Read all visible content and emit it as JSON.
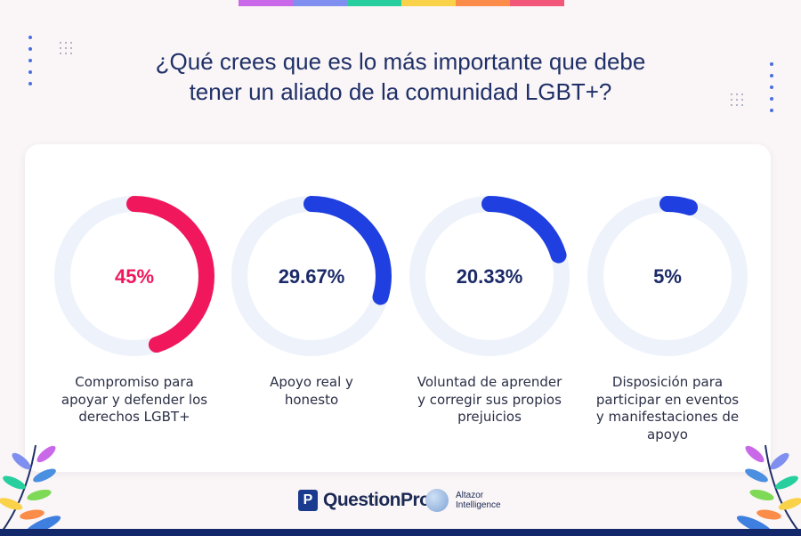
{
  "header": {
    "title_line1": "¿Qué crees que es lo más importante que debe",
    "title_line2": "tener un aliado de la comunidad LGBT+?"
  },
  "stripe_colors": [
    "#c968e8",
    "#7f8ff0",
    "#27cf9e",
    "#f9d24a",
    "#fb8c4a",
    "#f2577a"
  ],
  "colors": {
    "title": "#1f3068",
    "track": "#eef2fb",
    "accent_pink": "#f0175d",
    "accent_blue": "#1f3fe0",
    "value_text": "#1b2a68"
  },
  "chart_data": {
    "type": "donut",
    "items": [
      {
        "label": "Compromiso para\napoyar y defender los\nderechos LGBT+",
        "value": 45,
        "display": "45%",
        "color": "#f0175d"
      },
      {
        "label": "Apoyo real y\nhonesto",
        "value": 29.67,
        "display": "29.67%",
        "color": "#1f3fe0"
      },
      {
        "label": "Voluntad de aprender\ny corregir sus propios\nprejuicios",
        "value": 20.33,
        "display": "20.33%",
        "color": "#1f3fe0"
      },
      {
        "label": "Disposición para\nparticipar en eventos\ny manifestaciones de\napoyo",
        "value": 5,
        "display": "5%",
        "color": "#1f3fe0"
      }
    ],
    "max": 100
  },
  "footer": {
    "questionpro_mark": "P",
    "questionpro_text": "QuestionPro",
    "altazor_line1": "Altazor",
    "altazor_line2": "Intelligence"
  }
}
